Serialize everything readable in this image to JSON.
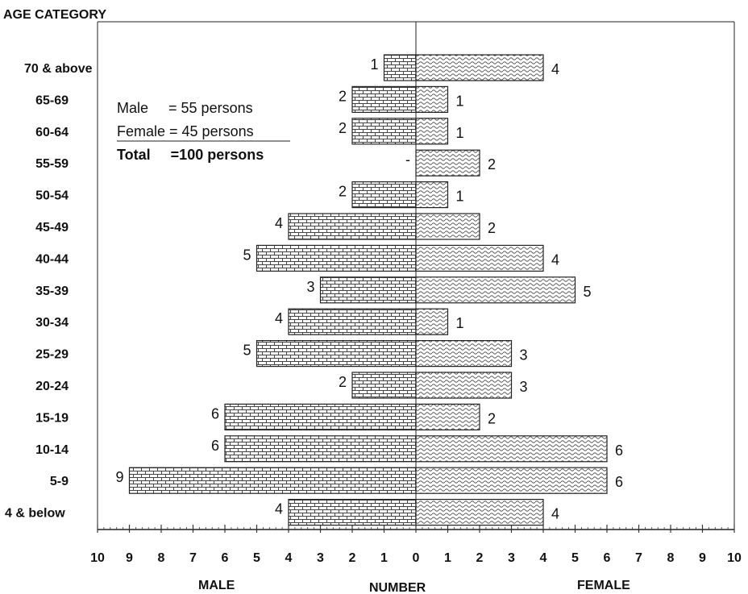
{
  "chart_data": {
    "type": "bar",
    "subtype": "population-pyramid",
    "title": "AGE CATEGORY",
    "categories": [
      "70 & above",
      "65-69",
      "60-64",
      "55-59",
      "50-54",
      "45-49",
      "40-44",
      "35-39",
      "30-34",
      "25-29",
      "20-24",
      "15-19",
      "10-14",
      "5-9",
      "4 & below"
    ],
    "series": [
      {
        "name": "MALE",
        "values": [
          1,
          2,
          2,
          0,
          2,
          4,
          5,
          3,
          4,
          5,
          2,
          6,
          6,
          9,
          4
        ],
        "labels": [
          "1",
          "2",
          "2",
          "-",
          "2",
          "4",
          "5",
          "3",
          "4",
          "5",
          "2",
          "6",
          "6",
          "9",
          "4"
        ],
        "color": "#c8c8c8",
        "pattern": "brick"
      },
      {
        "name": "FEMALE",
        "values": [
          4,
          1,
          1,
          2,
          1,
          2,
          4,
          5,
          1,
          3,
          3,
          2,
          6,
          6,
          4
        ],
        "labels": [
          "4",
          "1",
          "1",
          "2",
          "1",
          "2",
          "4",
          "5",
          "1",
          "3",
          "3",
          "2",
          "6",
          "6",
          "4"
        ],
        "color": "#d0d0d0",
        "pattern": "wave"
      }
    ],
    "xlabel": "NUMBER",
    "ylabel": "AGE CATEGORY",
    "xlim": [
      -10,
      10
    ],
    "x_ticks": [
      "10",
      "9",
      "8",
      "7",
      "6",
      "5",
      "4",
      "3",
      "2",
      "1",
      "0",
      "1",
      "2",
      "3",
      "4",
      "5",
      "6",
      "7",
      "8",
      "9",
      "10"
    ],
    "left_side_label": "MALE",
    "right_side_label": "FEMALE",
    "annotation": {
      "male_line": "Male     = 55 persons",
      "female_line": "Female = 45 persons",
      "total_line": "Total     =100 persons"
    },
    "grid": false,
    "legend": "none"
  }
}
